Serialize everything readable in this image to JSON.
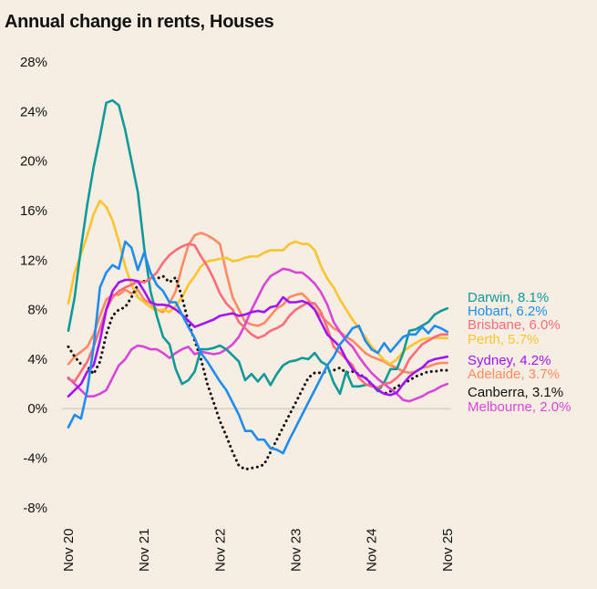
{
  "chart_data": {
    "type": "line",
    "title": "Annual change in rents, Houses",
    "xlabel": "",
    "ylabel": "",
    "x_start": "Nov 20",
    "x_end": "Nov 25",
    "x_frequency": "monthly",
    "x_ticks": [
      "Nov 20",
      "Nov 21",
      "Nov 22",
      "Nov 23",
      "Nov 24",
      "Nov 25"
    ],
    "y_ticks": [
      "28%",
      "24%",
      "20%",
      "16%",
      "12%",
      "8%",
      "4%",
      "0%",
      "-4%",
      "-8%"
    ],
    "ylim": [
      -8,
      28
    ],
    "grid": "zero line only",
    "legend": "right, end labels",
    "series": [
      {
        "name": "Darwin",
        "label": "Darwin, 8.1%",
        "color": "#10999a",
        "style": "solid",
        "values": [
          6.3,
          9,
          13,
          16.5,
          19.5,
          22,
          24.7,
          24.9,
          24.5,
          22.5,
          20,
          17.5,
          13,
          9.5,
          7.5,
          5.8,
          5.2,
          3.2,
          2.0,
          2.3,
          3.0,
          4.8,
          4.8,
          4.9,
          5.1,
          4.8,
          4.3,
          3.8,
          2.3,
          2.8,
          2.2,
          2.8,
          1.9,
          2.8,
          3.5,
          3.8,
          3.9,
          4.1,
          4.0,
          4.5,
          3.8,
          3.5,
          2.1,
          1.2,
          3.0,
          1.8,
          1.8,
          1.9,
          2.0,
          1.4,
          2.1,
          3.2,
          3.2,
          4.5,
          6.3,
          6.4,
          6.7,
          7.0,
          7.6,
          7.9,
          8.1
        ]
      },
      {
        "name": "Hobart",
        "label": "Hobart, 6.2%",
        "color": "#1f8cef",
        "style": "solid",
        "values": [
          -1.5,
          -0.5,
          -0.8,
          1.5,
          5,
          9.8,
          11,
          11.6,
          11.3,
          13.5,
          13,
          11.2,
          12.6,
          11,
          10,
          9.5,
          8.6,
          8.6,
          7.6,
          6.6,
          5.7,
          4.5,
          3.8,
          3.0,
          2.2,
          1.5,
          0.5,
          -0.5,
          -1.8,
          -1.8,
          -2.5,
          -2.5,
          -3.2,
          -3.3,
          -3.6,
          -2.5,
          -1.5,
          -0.5,
          0.5,
          1.5,
          2.5,
          3.5,
          4.2,
          5.2,
          5.8,
          6.5,
          6.7,
          5.5,
          4.8,
          4.5,
          5.3,
          4.6,
          5.2,
          5.8,
          6.0,
          6.0,
          6.6,
          6.1,
          6.7,
          6.5,
          6.2
        ]
      },
      {
        "name": "Brisbane",
        "label": "Brisbane, 6.0%",
        "color": "#fb6b7b",
        "style": "solid",
        "values": [
          2.4,
          2.2,
          3.0,
          3.8,
          5.0,
          6.5,
          8.0,
          9.0,
          9.5,
          9.8,
          10.0,
          10.3,
          10.2,
          10.5,
          11,
          11.8,
          12.4,
          12.8,
          13.1,
          13.3,
          13.2,
          12.3,
          11.5,
          10.5,
          9.3,
          8.5,
          8.0,
          7.0,
          6.5,
          6.0,
          5.7,
          5.9,
          6.3,
          6.5,
          6.8,
          7.5,
          8.0,
          8.3,
          8.6,
          8.5,
          7.8,
          6.5,
          5.0,
          4.5,
          4.0,
          3.5,
          2.5,
          2.0,
          1.8,
          1.7,
          2.0,
          2.1,
          2.5,
          3.0,
          4.0,
          4.6,
          5.2,
          5.5,
          5.8,
          6.0,
          6.0
        ]
      },
      {
        "name": "Perth",
        "label": "Perth, 5.7%",
        "color": "#fbc42e",
        "style": "solid",
        "values": [
          8.5,
          11,
          12.5,
          14,
          15.7,
          16.8,
          16.3,
          15.2,
          13.5,
          11.5,
          10.0,
          9.0,
          8.6,
          8.2,
          7.9,
          8.0,
          7.8,
          8.3,
          9.0,
          10.0,
          10.7,
          11.5,
          11.9,
          12.0,
          12.1,
          12.2,
          11.9,
          12.0,
          12.2,
          12.3,
          12.3,
          12.6,
          12.8,
          12.8,
          12.8,
          13.3,
          13.5,
          13.3,
          13.3,
          12.8,
          11.5,
          10.5,
          9.8,
          8.8,
          8.0,
          7.2,
          6.5,
          5.8,
          5.0,
          4.5,
          3.9,
          3.6,
          4.0,
          4.6,
          5.0,
          5.3,
          5.6,
          5.7,
          5.7,
          5.7,
          5.7
        ]
      },
      {
        "name": "Sydney",
        "label": "Sydney, 4.2%",
        "color": "#a312f5",
        "style": "solid",
        "values": [
          1.0,
          1.5,
          2.0,
          3.0,
          3.5,
          5.5,
          8.0,
          9.5,
          10.2,
          10.4,
          10.4,
          10.3,
          9.5,
          8.6,
          8.4,
          8.4,
          8.3,
          8.0,
          7.6,
          7.1,
          6.6,
          6.8,
          7.0,
          7.2,
          7.5,
          7.6,
          7.7,
          7.5,
          7.6,
          7.8,
          7.9,
          7.8,
          8.2,
          8.3,
          9.0,
          8.6,
          8.6,
          8.7,
          8.5,
          8.0,
          7.0,
          6.0,
          5.5,
          5.0,
          4.0,
          3.2,
          2.7,
          2.5,
          2.0,
          1.5,
          1.2,
          1.1,
          1.3,
          2.0,
          2.6,
          3.0,
          3.3,
          3.8,
          4.0,
          4.1,
          4.2
        ]
      },
      {
        "name": "Adelaide",
        "label": "Adelaide, 3.7%",
        "color": "#ff8a62",
        "style": "solid",
        "values": [
          3.6,
          4.2,
          4.6,
          5.0,
          6.0,
          7.5,
          8.8,
          9.2,
          9.2,
          9.6,
          9.3,
          9.6,
          8.8,
          8.5,
          8.0,
          7.8,
          8.5,
          9.5,
          11.5,
          13.2,
          14.0,
          14.2,
          14.0,
          13.7,
          13.3,
          11.0,
          9.0,
          8.0,
          7.0,
          6.8,
          6.7,
          6.9,
          7.5,
          8.1,
          8.4,
          9.0,
          9.2,
          9.3,
          8.8,
          8.0,
          7.5,
          7.0,
          6.5,
          6.2,
          5.8,
          5.5,
          5.0,
          4.5,
          4.2,
          4.0,
          3.8,
          3.5,
          3.3,
          3.0,
          2.9,
          3.0,
          3.3,
          3.4,
          3.6,
          3.7,
          3.7
        ]
      },
      {
        "name": "Canberra",
        "label": "Canberra, 3.1%",
        "color": "#111111",
        "style": "dotted",
        "values": [
          5.0,
          4.2,
          3.6,
          3.4,
          2.8,
          3.8,
          6.0,
          7.5,
          8.0,
          8.2,
          9.0,
          10.0,
          10.3,
          10.5,
          10.5,
          10.7,
          10.2,
          10.6,
          9.0,
          7.0,
          5.5,
          4.0,
          2.0,
          0.5,
          -1.0,
          -2.2,
          -3.5,
          -4.6,
          -4.9,
          -4.8,
          -4.7,
          -4.5,
          -3.5,
          -2.5,
          -1.5,
          -0.5,
          0.5,
          1.5,
          2.5,
          2.9,
          2.9,
          3.0,
          3.1,
          3.3,
          2.9,
          3.0,
          2.8,
          2.5,
          2.0,
          1.5,
          1.2,
          1.4,
          1.8,
          2.0,
          2.3,
          2.6,
          2.8,
          3.0,
          3.0,
          3.1,
          3.1
        ]
      },
      {
        "name": "Melbourne",
        "label": "Melbourne, 2.0%",
        "color": "#d945d6",
        "style": "solid",
        "values": [
          2.5,
          2.0,
          1.5,
          1.0,
          1.0,
          1.2,
          1.5,
          2.5,
          3.5,
          4.0,
          4.8,
          5.1,
          5.0,
          4.8,
          4.8,
          4.5,
          4.1,
          4.5,
          4.8,
          5.0,
          4.4,
          4.6,
          4.5,
          4.4,
          4.5,
          4.8,
          5.2,
          5.8,
          6.8,
          8.0,
          9.0,
          10.0,
          10.7,
          11.0,
          11.3,
          11.2,
          11.0,
          11.0,
          10.6,
          10.1,
          9.4,
          8.4,
          7.0,
          6.2,
          5.5,
          5.0,
          4.2,
          3.5,
          2.9,
          2.4,
          2.0,
          1.6,
          1.2,
          0.7,
          0.6,
          0.8,
          1.0,
          1.3,
          1.5,
          1.8,
          2.0
        ]
      }
    ]
  }
}
